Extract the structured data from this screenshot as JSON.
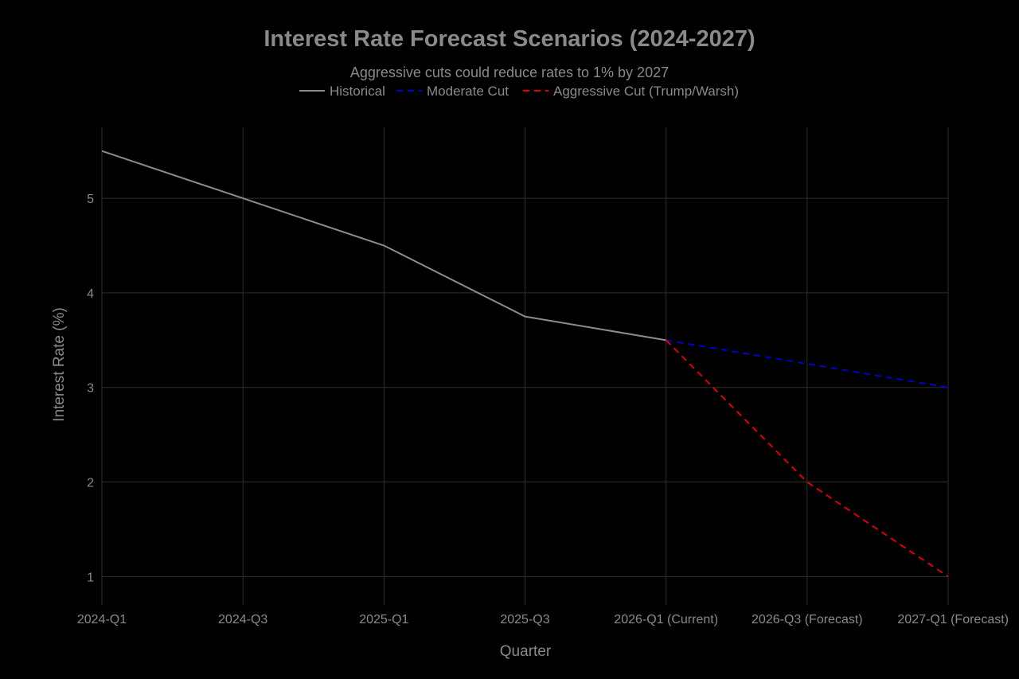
{
  "chart_data": {
    "type": "line",
    "title": "Interest Rate Forecast Scenarios (2024-2027)",
    "subtitle": "Aggressive cuts could reduce rates to 1% by 2027",
    "xlabel": "Quarter",
    "ylabel": "Interest Rate (%)",
    "categories": [
      "2024-Q1",
      "2024-Q3",
      "2025-Q1",
      "2025-Q3",
      "2026-Q1 (Current)",
      "2026-Q3 (Forecast)",
      "2027-Q1 (Forecast)"
    ],
    "yticks": [
      1,
      2,
      3,
      4,
      5
    ],
    "ylim": [
      0.7,
      5.75
    ],
    "grid": true,
    "legend_position": "top-center",
    "series": [
      {
        "name": "Historical",
        "color": "#8c8c8c",
        "dash": "solid",
        "points": [
          {
            "x": "2024-Q1",
            "y": 5.5
          },
          {
            "x": "2024-Q3",
            "y": 5.0
          },
          {
            "x": "2025-Q1",
            "y": 4.5
          },
          {
            "x": "2025-Q3",
            "y": 3.75
          },
          {
            "x": "2026-Q1 (Current)",
            "y": 3.5
          }
        ]
      },
      {
        "name": "Moderate Cut",
        "color": "#0000cc",
        "dash": "dashed",
        "points": [
          {
            "x": "2026-Q1 (Current)",
            "y": 3.5
          },
          {
            "x": "2026-Q3 (Forecast)",
            "y": 3.25
          },
          {
            "x": "2027-Q1 (Forecast)",
            "y": 3.0
          }
        ]
      },
      {
        "name": "Aggressive Cut (Trump/Warsh)",
        "color": "#e00000",
        "dash": "dashed",
        "points": [
          {
            "x": "2026-Q1 (Current)",
            "y": 3.5
          },
          {
            "x": "2026-Q3 (Forecast)",
            "y": 2.0
          },
          {
            "x": "2027-Q1 (Forecast)",
            "y": 1.0
          }
        ]
      }
    ]
  }
}
